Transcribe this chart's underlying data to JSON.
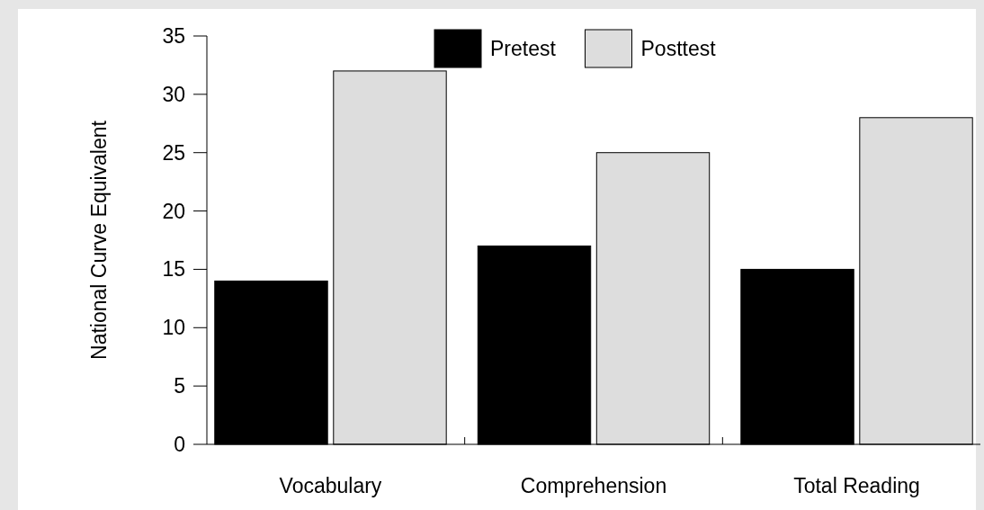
{
  "chart_data": {
    "type": "bar",
    "ylabel": "National Curve Equivalent",
    "categories": [
      "Vocabulary",
      "Comprehension",
      "Total Reading"
    ],
    "series": [
      {
        "name": "Pretest",
        "color": "#000000",
        "values": [
          14,
          17,
          15
        ]
      },
      {
        "name": "Posttest",
        "color": "#dddddd",
        "values": [
          32,
          25,
          28
        ]
      }
    ],
    "ylim": [
      0,
      35
    ],
    "yticks": [
      0,
      5,
      10,
      15,
      20,
      25,
      30,
      35
    ],
    "grid": false,
    "legend": "top"
  }
}
